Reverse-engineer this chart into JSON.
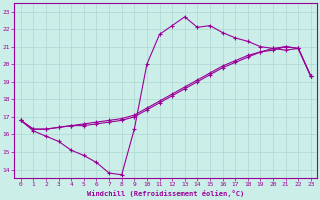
{
  "xlabel": "Windchill (Refroidissement éolien,°C)",
  "xlim": [
    -0.5,
    23.5
  ],
  "ylim": [
    13.5,
    23.5
  ],
  "xticks": [
    0,
    1,
    2,
    3,
    4,
    5,
    6,
    7,
    8,
    9,
    10,
    11,
    12,
    13,
    14,
    15,
    16,
    17,
    18,
    19,
    20,
    21,
    22,
    23
  ],
  "yticks": [
    14,
    15,
    16,
    17,
    18,
    19,
    20,
    21,
    22,
    23
  ],
  "bg_color": "#cceee8",
  "line_color": "#990099",
  "grid_color": "#aad8d0",
  "line1_x": [
    0,
    1,
    2,
    3,
    4,
    5,
    6,
    7,
    8,
    9,
    10,
    11,
    12,
    13,
    14,
    15,
    16,
    17,
    18,
    19,
    20,
    21,
    22,
    23
  ],
  "line1_y": [
    16.8,
    16.2,
    15.9,
    15.6,
    15.1,
    14.8,
    14.4,
    13.8,
    13.7,
    16.3,
    20.0,
    21.7,
    22.2,
    22.7,
    22.1,
    22.2,
    21.8,
    21.5,
    21.3,
    21.0,
    20.9,
    20.8,
    20.9,
    19.3
  ],
  "line2_x": [
    0,
    1,
    2,
    3,
    4,
    5,
    6,
    7,
    8,
    9,
    10,
    11,
    12,
    13,
    14,
    15,
    16,
    17,
    18,
    19,
    20,
    21,
    22,
    23
  ],
  "line2_y": [
    16.8,
    16.3,
    16.3,
    16.4,
    16.5,
    16.6,
    16.7,
    16.8,
    16.9,
    17.1,
    17.5,
    17.9,
    18.3,
    18.7,
    19.1,
    19.5,
    19.9,
    20.2,
    20.5,
    20.7,
    20.9,
    21.0,
    20.9,
    19.3
  ],
  "line3_x": [
    0,
    1,
    2,
    3,
    4,
    5,
    6,
    7,
    8,
    9,
    10,
    11,
    12,
    13,
    14,
    15,
    16,
    17,
    18,
    19,
    20,
    21,
    22,
    23
  ],
  "line3_y": [
    16.8,
    16.3,
    16.3,
    16.4,
    16.5,
    16.5,
    16.6,
    16.7,
    16.8,
    17.0,
    17.4,
    17.8,
    18.2,
    18.6,
    19.0,
    19.4,
    19.8,
    20.1,
    20.4,
    20.7,
    20.8,
    21.0,
    20.9,
    19.3
  ]
}
